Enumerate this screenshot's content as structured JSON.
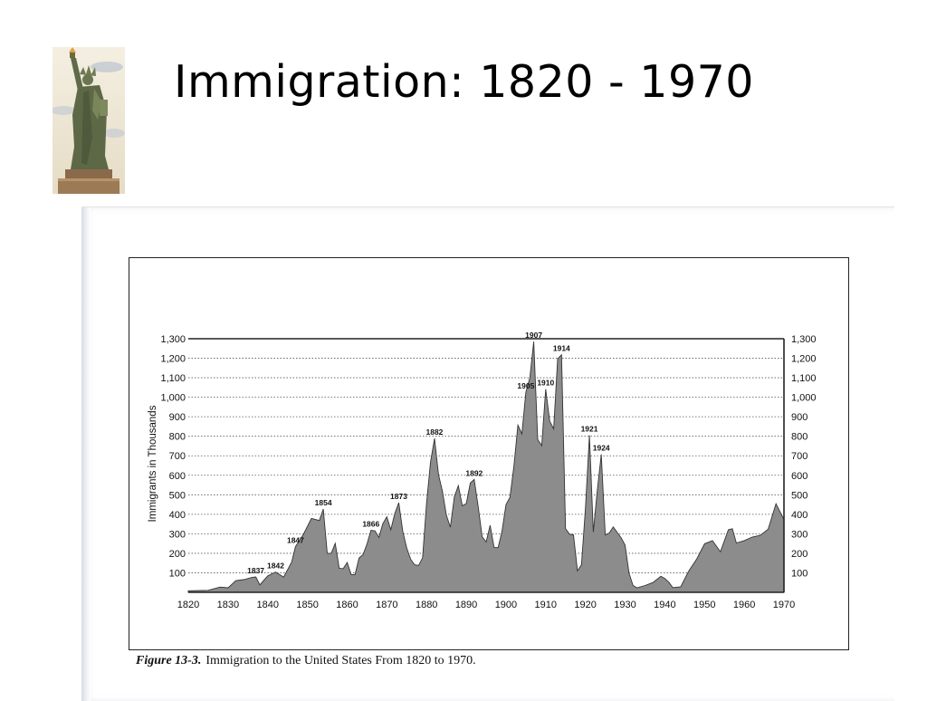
{
  "slide": {
    "title": "Immigration: 1820 - 1970"
  },
  "statue": {
    "icon": "statue-of-liberty-icon"
  },
  "caption": {
    "label": "Figure 13-3.",
    "text": "Immigration to the United States From 1820 to 1970."
  },
  "chart_data": {
    "type": "area",
    "title": "",
    "xlabel": "",
    "ylabel": "Immigrants in Thousands",
    "xlim": [
      1820,
      1970
    ],
    "ylim": [
      0,
      1300
    ],
    "grid": true,
    "x_ticks": [
      1820,
      1830,
      1840,
      1850,
      1860,
      1870,
      1880,
      1890,
      1900,
      1910,
      1920,
      1930,
      1940,
      1950,
      1960,
      1970
    ],
    "y_ticks": [
      100,
      200,
      300,
      400,
      500,
      600,
      700,
      800,
      900,
      1000,
      1100,
      1200,
      1300
    ],
    "y_tick_labels": [
      "100",
      "200",
      "300",
      "400",
      "500",
      "600",
      "700",
      "800",
      "900",
      "1,000",
      "1,100",
      "1,200",
      "1,300"
    ],
    "fill_color": "#8c8c8c",
    "series": [
      {
        "x": [
          1820,
          1825,
          1828,
          1830,
          1832,
          1834,
          1836,
          1837,
          1838,
          1840,
          1842,
          1844,
          1846,
          1847,
          1849,
          1851,
          1853,
          1854,
          1855,
          1856,
          1857,
          1858,
          1859,
          1860,
          1861,
          1862,
          1863,
          1864,
          1865,
          1866,
          1867,
          1868,
          1869,
          1870,
          1871,
          1872,
          1873,
          1874,
          1875,
          1876,
          1877,
          1878,
          1879,
          1880,
          1881,
          1882,
          1883,
          1884,
          1885,
          1886,
          1887,
          1888,
          1889,
          1890,
          1891,
          1892,
          1893,
          1894,
          1895,
          1896,
          1897,
          1898,
          1899,
          1900,
          1901,
          1902,
          1903,
          1904,
          1905,
          1906,
          1907,
          1908,
          1909,
          1910,
          1911,
          1912,
          1913,
          1914,
          1915,
          1916,
          1917,
          1918,
          1919,
          1920,
          1921,
          1922,
          1923,
          1924,
          1925,
          1926,
          1927,
          1928,
          1929,
          1930,
          1931,
          1932,
          1933,
          1935,
          1937,
          1939,
          1940,
          1941,
          1942,
          1944,
          1946,
          1948,
          1950,
          1952,
          1954,
          1956,
          1957,
          1958,
          1960,
          1962,
          1964,
          1966,
          1968,
          1970
        ],
        "y": [
          8,
          10,
          27,
          23,
          60,
          65,
          76,
          79,
          38,
          84,
          104,
          78,
          154,
          234,
          297,
          379,
          368,
          427,
          200,
          200,
          251,
          123,
          121,
          153,
          91,
          91,
          176,
          193,
          248,
          318,
          315,
          282,
          352,
          387,
          321,
          404,
          459,
          313,
          227,
          169,
          141,
          138,
          177,
          457,
          669,
          789,
          603,
          518,
          395,
          334,
          490,
          547,
          444,
          455,
          560,
          579,
          440,
          285,
          258,
          343,
          230,
          229,
          312,
          449,
          487,
          648,
          857,
          812,
          1026,
          1100,
          1285,
          783,
          752,
          1042,
          878,
          838,
          1197,
          1218,
          327,
          298,
          295,
          110,
          141,
          430,
          805,
          309,
          523,
          707,
          294,
          304,
          335,
          307,
          280,
          242,
          97,
          35,
          23,
          35,
          50,
          82,
          71,
          52,
          24,
          28,
          108,
          170,
          249,
          265,
          208,
          321,
          326,
          253,
          265,
          283,
          292,
          323,
          454,
          373
        ]
      }
    ],
    "annotations": [
      {
        "year": 1837,
        "value": 79,
        "label": "1837"
      },
      {
        "year": 1842,
        "value": 104,
        "label": "1842"
      },
      {
        "year": 1847,
        "value": 234,
        "label": "1847"
      },
      {
        "year": 1854,
        "value": 427,
        "label": "1854"
      },
      {
        "year": 1866,
        "value": 318,
        "label": "1866"
      },
      {
        "year": 1873,
        "value": 459,
        "label": "1873"
      },
      {
        "year": 1882,
        "value": 789,
        "label": "1882"
      },
      {
        "year": 1892,
        "value": 579,
        "label": "1892"
      },
      {
        "year": 1905,
        "value": 1026,
        "label": "1905"
      },
      {
        "year": 1907,
        "value": 1285,
        "label": "1907"
      },
      {
        "year": 1910,
        "value": 1042,
        "label": "1910"
      },
      {
        "year": 1914,
        "value": 1218,
        "label": "1914"
      },
      {
        "year": 1921,
        "value": 805,
        "label": "1921"
      },
      {
        "year": 1924,
        "value": 707,
        "label": "1924"
      }
    ]
  }
}
